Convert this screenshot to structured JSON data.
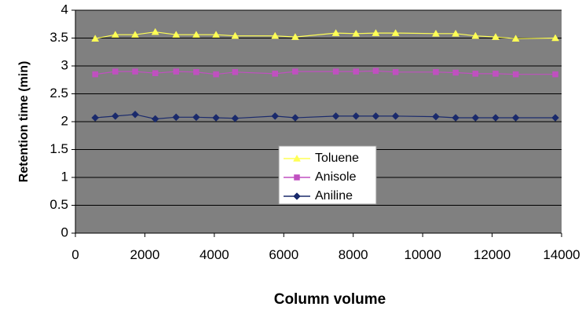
{
  "chart_data": {
    "type": "line",
    "title": "",
    "xlabel": "Column volume",
    "ylabel": "Retention time (min)",
    "xlim": [
      0,
      14000
    ],
    "ylim": [
      0,
      4
    ],
    "xticks": [
      "0",
      "2000",
      "4000",
      "6000",
      "8000",
      "10000",
      "12000",
      "14000"
    ],
    "yticks": [
      "0",
      "0.5",
      "1",
      "1.5",
      "2",
      "2.5",
      "3",
      "3.5",
      "4"
    ],
    "grid": true,
    "legend_position": "center",
    "series": [
      {
        "name": "Toluene",
        "color": "#ffff55",
        "marker": "triangle",
        "x": [
          570,
          1150,
          1720,
          2300,
          2900,
          3480,
          4050,
          4600,
          5750,
          6330,
          7500,
          8080,
          8650,
          9220,
          10380,
          10950,
          11520,
          12100,
          12680,
          13820
        ],
        "y": [
          3.49,
          3.56,
          3.56,
          3.61,
          3.56,
          3.56,
          3.56,
          3.54,
          3.54,
          3.52,
          3.59,
          3.58,
          3.59,
          3.59,
          3.58,
          3.58,
          3.54,
          3.52,
          3.49,
          3.5
        ]
      },
      {
        "name": "Anisole",
        "color": "#c050c0",
        "marker": "square",
        "x": [
          570,
          1150,
          1720,
          2300,
          2900,
          3480,
          4050,
          4600,
          5750,
          6330,
          7500,
          8080,
          8650,
          9220,
          10380,
          10950,
          11520,
          12100,
          12680,
          13820
        ],
        "y": [
          2.85,
          2.9,
          2.9,
          2.87,
          2.9,
          2.89,
          2.85,
          2.89,
          2.86,
          2.9,
          2.9,
          2.9,
          2.91,
          2.89,
          2.89,
          2.88,
          2.86,
          2.86,
          2.85,
          2.85
        ]
      },
      {
        "name": "Aniline",
        "color": "#1a2a6c",
        "marker": "diamond",
        "x": [
          570,
          1150,
          1720,
          2300,
          2900,
          3480,
          4050,
          4600,
          5750,
          6330,
          7500,
          8080,
          8650,
          9220,
          10380,
          10950,
          11520,
          12100,
          12680,
          13820
        ],
        "y": [
          2.07,
          2.1,
          2.13,
          2.05,
          2.08,
          2.08,
          2.07,
          2.06,
          2.1,
          2.07,
          2.1,
          2.1,
          2.1,
          2.1,
          2.09,
          2.07,
          2.07,
          2.07,
          2.07,
          2.07
        ]
      }
    ]
  }
}
